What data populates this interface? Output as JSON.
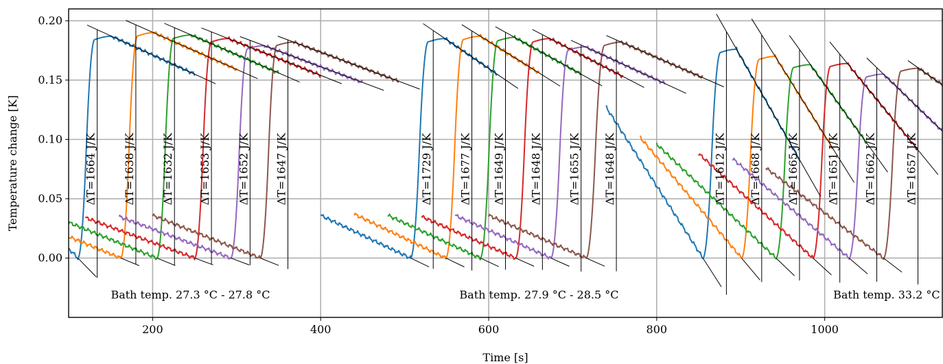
{
  "chart_data": {
    "type": "line",
    "title": "",
    "xlabel": "Time [s]",
    "ylabel": "Temperature change [K]",
    "xlim": [
      100,
      1140
    ],
    "ylim": [
      -0.05,
      0.21
    ],
    "xticks": [
      200,
      400,
      600,
      800,
      1000
    ],
    "xtick_labels": [
      "200",
      "400",
      "600",
      "800",
      "1000"
    ],
    "yticks": [
      0.0,
      0.05,
      0.1,
      0.15,
      0.2
    ],
    "ytick_labels": [
      "0.00",
      "0.05",
      "0.10",
      "0.15",
      "0.20"
    ],
    "grid": true,
    "colors": [
      "#1f77b4",
      "#ff7f0e",
      "#2ca02c",
      "#d62728",
      "#9467bd",
      "#8c564b"
    ],
    "groups": [
      {
        "label": "Bath temp. 27.3 °C - 27.8 °C",
        "label_x": 245,
        "pulses": [
          {
            "series": 1,
            "pre_start": [
              100,
              0.008
            ],
            "t0": 111,
            "t_rise": 131,
            "peak_t": 151,
            "peak": 0.187,
            "end": [
              250,
              0.155
            ],
            "vline_t": 134,
            "annotation": "ΔT=1664 J/K"
          },
          {
            "series": 2,
            "pre_start": [
              100,
              0.018
            ],
            "t0": 162,
            "t_rise": 182,
            "peak_t": 201,
            "peak": 0.19,
            "end": [
              300,
              0.159
            ],
            "vline_t": 180,
            "annotation": "ΔT=1638 J/K"
          },
          {
            "series": 3,
            "pre_start": [
              100,
              0.03
            ],
            "t0": 205,
            "t_rise": 225,
            "peak_t": 246,
            "peak": 0.188,
            "end": [
              350,
              0.156
            ],
            "vline_t": 226,
            "annotation": "ΔT=1632 J/K"
          },
          {
            "series": 4,
            "pre_start": [
              120,
              0.034
            ],
            "t0": 250,
            "t_rise": 270,
            "peak_t": 290,
            "peak": 0.185,
            "end": [
              400,
              0.154
            ],
            "vline_t": 270,
            "annotation": "ΔT=1653 J/K"
          },
          {
            "series": 5,
            "pre_start": [
              160,
              0.035
            ],
            "t0": 293,
            "t_rise": 313,
            "peak_t": 333,
            "peak": 0.179,
            "end": [
              450,
              0.148
            ],
            "vline_t": 316,
            "annotation": "ΔT=1652 J/K"
          },
          {
            "series": 6,
            "pre_start": [
              200,
              0.036
            ],
            "t0": 328,
            "t_rise": 348,
            "peak_t": 368,
            "peak": 0.182,
            "end": [
              493,
              0.149
            ],
            "vline_t": 361,
            "annotation": "ΔT=1647 J/K"
          }
        ]
      },
      {
        "label": "Bath temp. 27.9 °C - 28.5 °C",
        "label_x": 660,
        "pulses": [
          {
            "series": 1,
            "pre_start": [
              400,
              0.036
            ],
            "t0": 507,
            "t_rise": 528,
            "peak_t": 548,
            "peak": 0.185,
            "end": [
              610,
              0.155
            ],
            "vline_t": 534,
            "annotation": "ΔT=1729 J/K"
          },
          {
            "series": 2,
            "pre_start": [
              440,
              0.037
            ],
            "t0": 549,
            "t_rise": 570,
            "peak_t": 590,
            "peak": 0.187,
            "end": [
              660,
              0.156
            ],
            "vline_t": 580,
            "annotation": "ΔT=1677 J/K"
          },
          {
            "series": 3,
            "pre_start": [
              480,
              0.036
            ],
            "t0": 590,
            "t_rise": 611,
            "peak_t": 631,
            "peak": 0.186,
            "end": [
              710,
              0.155
            ],
            "vline_t": 620,
            "annotation": "ΔT=1649 J/K"
          },
          {
            "series": 4,
            "pre_start": [
              520,
              0.035
            ],
            "t0": 632,
            "t_rise": 653,
            "peak_t": 673,
            "peak": 0.185,
            "end": [
              760,
              0.153
            ],
            "vline_t": 664,
            "annotation": "ΔT=1648 J/K"
          },
          {
            "series": 5,
            "pre_start": [
              560,
              0.036
            ],
            "t0": 674,
            "t_rise": 695,
            "peak_t": 715,
            "peak": 0.178,
            "end": [
              810,
              0.147
            ],
            "vline_t": 710,
            "annotation": "ΔT=1655 J/K"
          },
          {
            "series": 6,
            "pre_start": [
              600,
              0.036
            ],
            "t0": 716,
            "t_rise": 738,
            "peak_t": 758,
            "peak": 0.182,
            "end": [
              855,
              0.152
            ],
            "vline_t": 752,
            "annotation": "ΔT=1648 J/K"
          }
        ]
      },
      {
        "label": "Bath temp. 33.2 °C - 33.5 °C",
        "label_x": 1105,
        "pulses": [
          {
            "series": 1,
            "pre_start": [
              740,
              0.127
            ],
            "t0": 855,
            "t_rise": 876,
            "peak_t": 895,
            "peak": 0.176,
            "end": [
              970,
              0.083
            ],
            "vline_t": 883,
            "annotation": "ΔT=1612 J/K"
          },
          {
            "series": 2,
            "pre_start": [
              780,
              0.102
            ],
            "t0": 901,
            "t_rise": 922,
            "peak_t": 941,
            "peak": 0.17,
            "end": [
              1010,
              0.092
            ],
            "vline_t": 925,
            "annotation": "ΔT=1668 J/K"
          },
          {
            "series": 3,
            "pre_start": [
              800,
              0.096
            ],
            "t0": 942,
            "t_rise": 963,
            "peak_t": 983,
            "peak": 0.163,
            "end": [
              1050,
              0.097
            ],
            "vline_t": 970,
            "annotation": "ΔT=1665 J/K"
          },
          {
            "series": 4,
            "pre_start": [
              850,
              0.088
            ],
            "t0": 986,
            "t_rise": 1007,
            "peak_t": 1027,
            "peak": 0.164,
            "end": [
              1110,
              0.092
            ],
            "vline_t": 1018,
            "annotation": "ΔT=1651 J/K"
          },
          {
            "series": 5,
            "pre_start": [
              890,
              0.084
            ],
            "t0": 1029,
            "t_rise": 1050,
            "peak_t": 1070,
            "peak": 0.155,
            "end": [
              1140,
              0.107
            ],
            "vline_t": 1062,
            "annotation": "ΔT=1662 J/K"
          },
          {
            "series": 6,
            "pre_start": [
              930,
              0.076
            ],
            "t0": 1070,
            "t_rise": 1091,
            "peak_t": 1112,
            "peak": 0.16,
            "end": [
              1140,
              0.146
            ],
            "vline_t": 1111,
            "annotation": "ΔT=1657 J/K"
          }
        ]
      }
    ]
  }
}
